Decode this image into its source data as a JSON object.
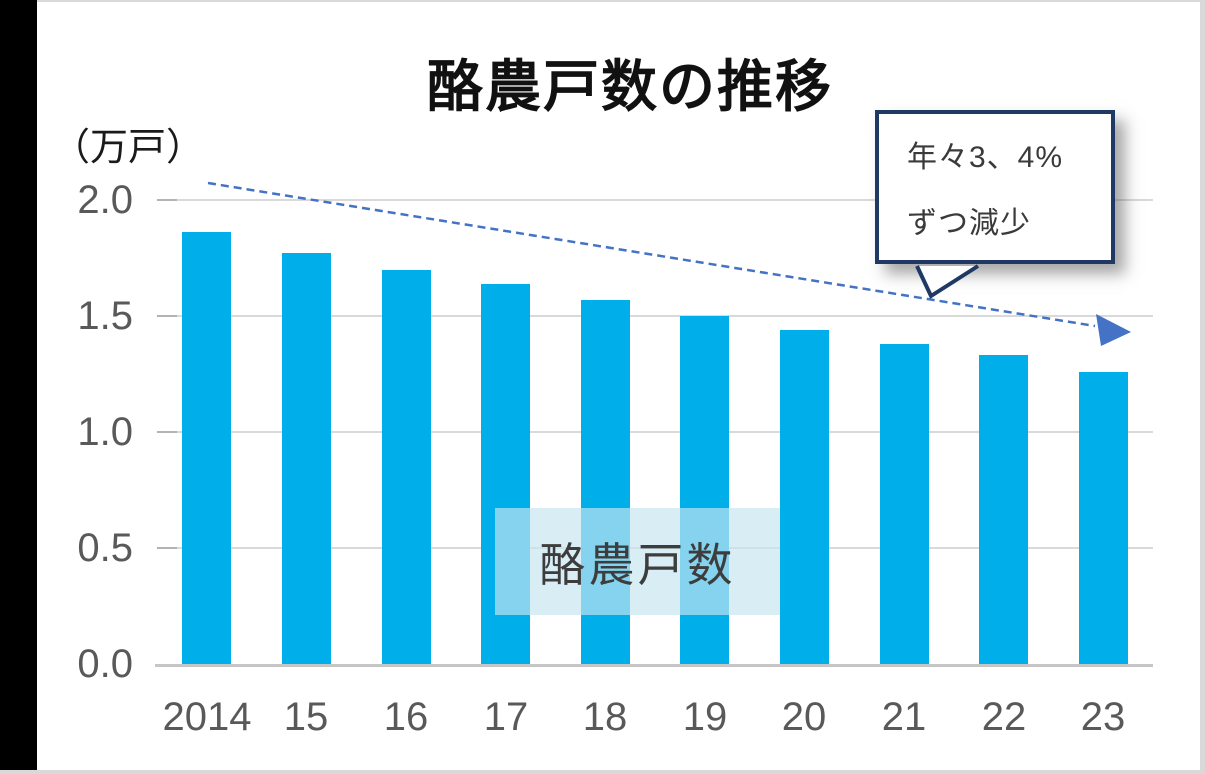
{
  "title": "酪農戸数の推移",
  "y_axis_unit": "（万戸）",
  "series_label": "酪農戸数",
  "callout": {
    "line1": "年々3、4%",
    "line2": "ずつ減少",
    "full_text": "年々3、4%ずつ減少"
  },
  "colors": {
    "bar": "#00AFEA",
    "trend": "#4472C4",
    "callout_border": "#1F3864",
    "gridline": "#D9D9D9",
    "axis_text": "#595959",
    "slide_edge": "#000000",
    "series_label_bg": "rgba(198,228,240,0.67)"
  },
  "chart_data": {
    "type": "bar",
    "title": "酪農戸数の推移",
    "series_name": "酪農戸数",
    "categories": [
      "2014",
      "15",
      "16",
      "17",
      "18",
      "19",
      "20",
      "21",
      "22",
      "23"
    ],
    "values": [
      1.86,
      1.77,
      1.7,
      1.64,
      1.57,
      1.5,
      1.44,
      1.38,
      1.33,
      1.26
    ],
    "xlabel": "",
    "ylabel": "（万戸）",
    "ylim": [
      0,
      2.0
    ],
    "yticks": [
      0.0,
      0.5,
      1.0,
      1.5,
      2.0
    ],
    "grid": true,
    "legend_position": "center-overlay",
    "annotation": "年々3、4%ずつ減少",
    "trend_arrow": "downward dashed line across chart"
  }
}
